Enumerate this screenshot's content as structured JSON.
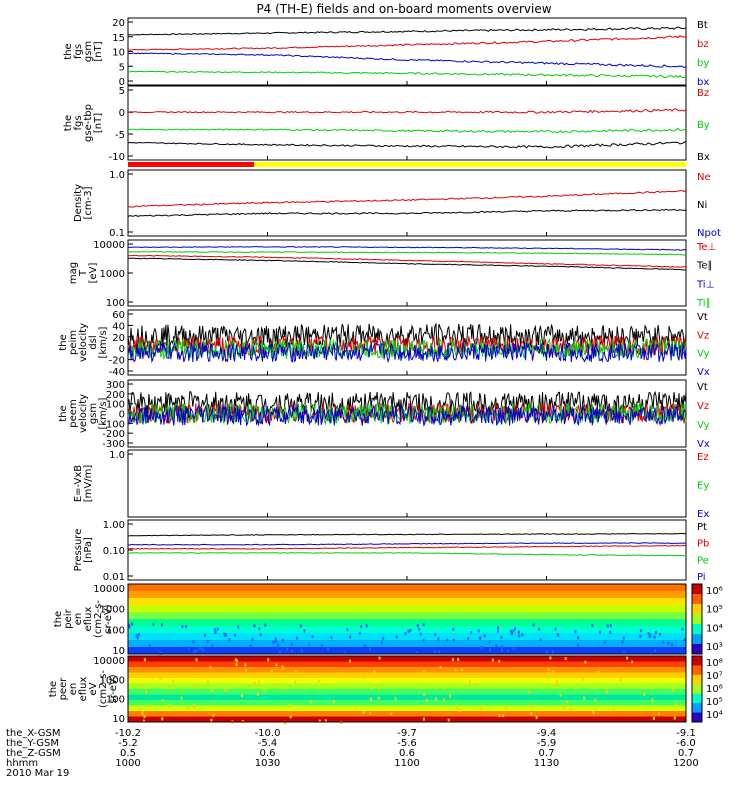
{
  "title": "P4 (TH-E) fields and on-board moments overview",
  "colors": {
    "black": "#000000",
    "red": "#e00000",
    "blue": "#0000d0",
    "green": "#00d000"
  },
  "panels": [
    {
      "key": "fgs_gsm",
      "ylabel": [
        "the",
        "fgs",
        "gsm",
        "[nT]"
      ],
      "ticks": [
        "20",
        "15",
        "10",
        "5",
        "0"
      ],
      "legend": [
        "Bt",
        "bz",
        "by",
        "bx"
      ],
      "legend_colors": [
        "black",
        "red",
        "green",
        "blue"
      ]
    },
    {
      "key": "fgs_gse",
      "ylabel": [
        "the",
        "fgs",
        "gse-tbp",
        "[nT]"
      ],
      "ticks": [
        "5",
        "0",
        "-5",
        "-10"
      ],
      "legend": [
        "Bz",
        "By",
        "Bx"
      ],
      "legend_colors": [
        "red",
        "green",
        "black"
      ]
    },
    {
      "key": "density",
      "ylabel": [
        "Density",
        "[cm-3]"
      ],
      "ticks": [
        "1.0",
        "0.1"
      ],
      "legend": [
        "Ne",
        "Ni",
        "Npot"
      ],
      "legend_colors": [
        "red",
        "black",
        "blue"
      ]
    },
    {
      "key": "temperature",
      "ylabel": [
        "mag",
        "T",
        "[eV]"
      ],
      "ticks": [
        "10000",
        "1000",
        "100"
      ],
      "legend": [
        "Te⊥",
        "Te∥",
        "Ti⊥",
        "Ti∥"
      ],
      "legend_colors": [
        "red",
        "black",
        "blue",
        "green"
      ]
    },
    {
      "key": "peim_velocity",
      "ylabel": [
        "the",
        "peim",
        "velocity",
        "dsl",
        "[km/s]"
      ],
      "ticks": [
        "60",
        "40",
        "20",
        "0",
        "-20",
        "-40"
      ],
      "legend": [
        "Vt",
        "Vz",
        "Vy",
        "Vx"
      ],
      "legend_colors": [
        "black",
        "red",
        "green",
        "blue"
      ]
    },
    {
      "key": "peem_velocity",
      "ylabel": [
        "the",
        "peem",
        "velocity",
        "gsm",
        "[km/s]"
      ],
      "ticks": [
        "300",
        "200",
        "100",
        "0",
        "-100",
        "-200",
        "-300"
      ],
      "legend": [
        "Vt",
        "Vz",
        "Vy",
        "Vx"
      ],
      "legend_colors": [
        "black",
        "red",
        "green",
        "blue"
      ]
    },
    {
      "key": "efield",
      "ylabel": [
        "E=-VxB",
        "[mV/m]"
      ],
      "ticks": [
        "1.0"
      ],
      "legend": [
        "Ez",
        "Ey",
        "Ex"
      ],
      "legend_colors": [
        "red",
        "green",
        "blue"
      ]
    },
    {
      "key": "pressure",
      "ylabel": [
        "Pressure",
        "[nPa]"
      ],
      "ticks": [
        "1.00",
        "0.10",
        "0.01"
      ],
      "legend": [
        "Pt",
        "Pb",
        "Pe",
        "Pi"
      ],
      "legend_colors": [
        "black",
        "red",
        "green",
        "blue"
      ]
    },
    {
      "key": "peir_eflux",
      "ylabel": [
        "the",
        "peir",
        "en",
        "eflux",
        "(cm2-s-",
        "sr-eV)"
      ],
      "ticks": [
        "10000",
        "1000",
        "100",
        "10"
      ],
      "legend": [],
      "legend_colors": []
    },
    {
      "key": "peer_eflux",
      "ylabel": [
        "the",
        "peer",
        "en",
        "eflux",
        "eV",
        "(cm2-s-",
        "sr-eV)"
      ],
      "ticks": [
        "10000",
        "1000",
        "100",
        "10"
      ],
      "legend": [],
      "legend_colors": []
    }
  ],
  "colorbars": [
    {
      "labels": [
        "10⁶",
        "10⁵",
        "10⁴",
        "10³"
      ]
    },
    {
      "labels": [
        "10⁸",
        "10⁷",
        "10⁶",
        "10⁵",
        "10⁴"
      ]
    }
  ],
  "orbit_rows": [
    {
      "label": "the_X-GSM",
      "values": [
        "-10.2",
        "-10.0",
        "-9.7",
        "-9.4",
        "-9.1"
      ]
    },
    {
      "label": "the_Y-GSM",
      "values": [
        "-5.2",
        "-5.4",
        "-5.6",
        "-5.9",
        "-6.0"
      ]
    },
    {
      "label": "the_Z-GSM",
      "values": [
        "0.5",
        "0.6",
        "0.6",
        "0.7",
        "0.7"
      ]
    },
    {
      "label": "hhmm",
      "values": [
        "1000",
        "1030",
        "1100",
        "1130",
        "1200"
      ]
    }
  ],
  "date": "2010 Mar 19",
  "chart_data": {
    "type": "line",
    "title": "P4 (TH-E) fields and on-board moments overview",
    "x": [
      "1000",
      "1030",
      "1100",
      "1130",
      "1200"
    ],
    "xlabel": "hhmm",
    "panels": [
      {
        "name": "fgs_gsm",
        "ylim": [
          0,
          20
        ],
        "series": [
          {
            "name": "Bt",
            "values": [
              15,
              15.5,
              16,
              16.5,
              17
            ]
          },
          {
            "name": "bz",
            "values": [
              10.5,
              11,
              12,
              13,
              14.5
            ]
          },
          {
            "name": "by",
            "values": [
              4,
              3.8,
              3.5,
              3,
              2.5
            ]
          },
          {
            "name": "bx",
            "values": [
              9.5,
              9,
              7.5,
              6.5,
              5.5
            ]
          }
        ]
      },
      {
        "name": "fgs_gse",
        "ylim": [
          -11,
          6
        ],
        "series": [
          {
            "name": "Bz",
            "values": [
              0,
              0,
              0,
              0,
              0.5
            ]
          },
          {
            "name": "By",
            "values": [
              -4,
              -4,
              -4.3,
              -4.5,
              -4
            ]
          },
          {
            "name": "Bx",
            "values": [
              -7,
              -7.5,
              -7.8,
              -8,
              -7
            ]
          }
        ]
      },
      {
        "name": "density",
        "ylog": true,
        "ylim": [
          0.1,
          1.0
        ],
        "series": [
          {
            "name": "Ne",
            "values": [
              0.28,
              0.32,
              0.35,
              0.4,
              0.48
            ]
          },
          {
            "name": "Ni",
            "values": [
              0.2,
              0.22,
              0.22,
              0.24,
              0.25
            ]
          }
        ]
      },
      {
        "name": "temperature",
        "ylog": true,
        "ylim": [
          100,
          10000
        ],
        "series": [
          {
            "name": "Ti⊥",
            "values": [
              6000,
              6200,
              6000,
              5600,
              5000
            ]
          },
          {
            "name": "Ti∥",
            "values": [
              4400,
              4300,
              4200,
              4000,
              3600
            ]
          },
          {
            "name": "Te⊥",
            "values": [
              3400,
              3000,
              2400,
              1900,
              1500
            ]
          },
          {
            "name": "Te∥",
            "values": [
              2800,
              2400,
              1900,
              1600,
              1250
            ]
          }
        ]
      },
      {
        "name": "peim_velocity",
        "ylim": [
          -40,
          60
        ],
        "series": [
          {
            "name": "Vt",
            "values": [
              20,
              20,
              22,
              20,
              20
            ]
          },
          {
            "name": "Vz",
            "values": [
              5,
              5,
              5,
              5,
              5
            ]
          },
          {
            "name": "Vy",
            "values": [
              0,
              0,
              0,
              0,
              0
            ]
          },
          {
            "name": "Vx",
            "values": [
              -5,
              -5,
              -5,
              -5,
              -5
            ]
          }
        ]
      },
      {
        "name": "peem_velocity",
        "ylim": [
          -300,
          300
        ],
        "series": [
          {
            "name": "Vt",
            "values": [
              100,
              90,
              90,
              90,
              90
            ]
          },
          {
            "name": "Vz",
            "values": [
              0,
              0,
              0,
              0,
              0
            ]
          },
          {
            "name": "Vy",
            "values": [
              0,
              0,
              0,
              0,
              0
            ]
          },
          {
            "name": "Vx",
            "values": [
              -20,
              -20,
              -20,
              -20,
              -20
            ]
          }
        ]
      },
      {
        "name": "pressure",
        "ylog": true,
        "ylim": [
          0.01,
          1.0
        ],
        "series": [
          {
            "name": "Pt",
            "values": [
              0.3,
              0.32,
              0.33,
              0.34,
              0.35
            ]
          },
          {
            "name": "Pb",
            "values": [
              0.11,
              0.11,
              0.12,
              0.13,
              0.14
            ]
          },
          {
            "name": "Pi",
            "values": [
              0.15,
              0.15,
              0.16,
              0.17,
              0.17
            ]
          },
          {
            "name": "Pe",
            "values": [
              0.08,
              0.08,
              0.08,
              0.07,
              0.065
            ]
          }
        ]
      }
    ]
  }
}
